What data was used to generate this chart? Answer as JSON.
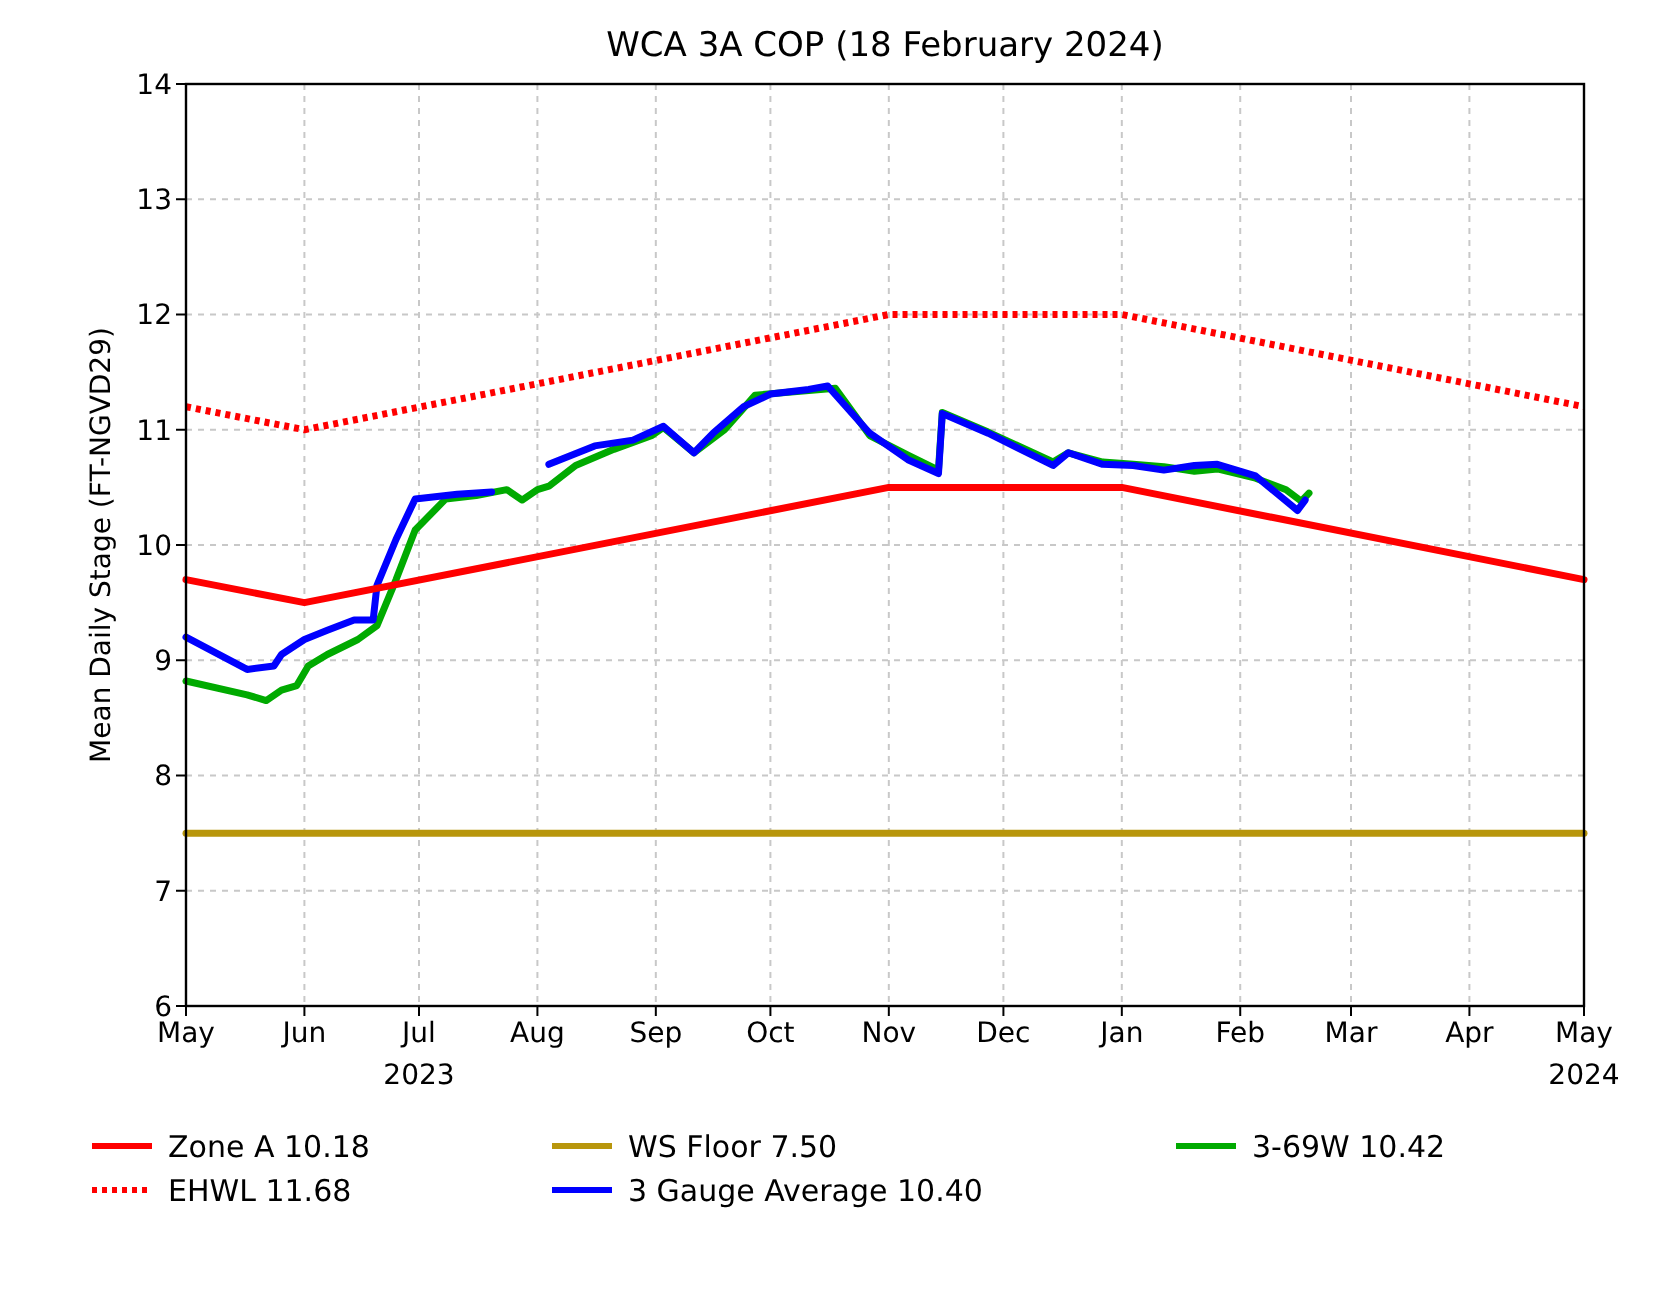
{
  "chart_data": {
    "type": "line",
    "title": "WCA 3A COP (18 February 2024)",
    "ylabel": "Mean Daily Stage (FT-NGVD29)",
    "xlim": [
      "2023-05-01",
      "2024-05-01"
    ],
    "xticks": [
      {
        "value": "2023-05-01",
        "label": "May"
      },
      {
        "value": "2023-06-01",
        "label": "Jun"
      },
      {
        "value": "2023-07-01",
        "label": "Jul\n2023"
      },
      {
        "value": "2023-08-01",
        "label": "Aug"
      },
      {
        "value": "2023-09-01",
        "label": "Sep"
      },
      {
        "value": "2023-10-01",
        "label": "Oct"
      },
      {
        "value": "2023-11-01",
        "label": "Nov"
      },
      {
        "value": "2023-12-01",
        "label": "Dec"
      },
      {
        "value": "2024-01-01",
        "label": "Jan"
      },
      {
        "value": "2024-02-01",
        "label": "Feb"
      },
      {
        "value": "2024-03-01",
        "label": "Mar"
      },
      {
        "value": "2024-04-01",
        "label": "Apr"
      },
      {
        "value": "2024-05-01",
        "label": "May\n2024"
      }
    ],
    "ylim": [
      6,
      14
    ],
    "yticks": [
      6,
      7,
      8,
      9,
      10,
      11,
      12,
      13,
      14
    ],
    "grid": true,
    "legend": "bottom",
    "marker": "none",
    "series": [
      {
        "name": "Zone A 10.18",
        "color": "#ff0000",
        "line_style": "solid",
        "x": [
          "2023-05-01",
          "2023-06-01",
          "2023-11-01",
          "2024-01-01",
          "2024-05-01"
        ],
        "values": [
          9.7,
          9.5,
          10.5,
          10.5,
          9.7
        ]
      },
      {
        "name": "EHWL 11.68",
        "color": "#ff0000",
        "line_style": "dotted",
        "x": [
          "2023-05-01",
          "2023-06-01",
          "2023-11-01",
          "2024-01-01",
          "2024-05-01"
        ],
        "values": [
          11.2,
          11.0,
          12.0,
          12.0,
          11.2
        ]
      },
      {
        "name": "WS Floor 7.50",
        "color": "#b8960c",
        "line_style": "solid",
        "x": [
          "2023-05-01",
          "2024-05-01"
        ],
        "values": [
          7.5,
          7.5
        ]
      },
      {
        "name": "3 Gauge Average 10.40",
        "color": "#0000ff",
        "line_style": "solid",
        "x": [
          "2023-05-01",
          "2023-05-17",
          "2023-05-24",
          "2023-05-26",
          "2023-06-01",
          "2023-06-07",
          "2023-06-14",
          "2023-06-19",
          "2023-06-20",
          "2023-06-25",
          "2023-06-30",
          "2023-07-11",
          "2023-07-20",
          "2023-07-27",
          "2023-08-04",
          "2023-08-16",
          "2023-08-26",
          "2023-09-03",
          "2023-09-11",
          "2023-09-16",
          "2023-09-24",
          "2023-10-01",
          "2023-10-11",
          "2023-10-16",
          "2023-10-27",
          "2023-11-06",
          "2023-11-14",
          "2023-11-15",
          "2023-11-27",
          "2023-12-14",
          "2023-12-18",
          "2023-12-27",
          "2024-01-04",
          "2024-01-12",
          "2024-01-20",
          "2024-01-26",
          "2024-02-05",
          "2024-02-16",
          "2024-02-18"
        ],
        "values": [
          9.2,
          8.92,
          8.95,
          9.05,
          9.18,
          9.26,
          9.35,
          9.35,
          9.65,
          10.05,
          10.4,
          10.44,
          10.46,
          null,
          10.7,
          10.86,
          10.91,
          11.03,
          10.8,
          10.97,
          11.2,
          11.31,
          11.35,
          11.38,
          10.97,
          10.74,
          10.62,
          11.14,
          10.97,
          10.69,
          10.8,
          10.7,
          10.69,
          10.65,
          10.69,
          10.7,
          10.6,
          10.3,
          10.39
        ]
      },
      {
        "name": "3-69W 10.42",
        "color": "#00aa00",
        "line_style": "solid",
        "x": [
          "2023-05-01",
          "2023-05-17",
          "2023-05-22",
          "2023-05-26",
          "2023-05-30",
          "2023-06-02",
          "2023-06-07",
          "2023-06-15",
          "2023-06-20",
          "2023-06-25",
          "2023-06-30",
          "2023-07-08",
          "2023-07-16",
          "2023-07-24",
          "2023-07-28",
          "2023-08-01",
          "2023-08-04",
          "2023-08-11",
          "2023-08-21",
          "2023-08-31",
          "2023-09-03",
          "2023-09-11",
          "2023-09-19",
          "2023-09-27",
          "2023-10-18",
          "2023-10-27",
          "2023-11-06",
          "2023-11-14",
          "2023-11-15",
          "2023-11-27",
          "2023-12-14",
          "2023-12-18",
          "2023-12-27",
          "2024-01-04",
          "2024-01-12",
          "2024-01-20",
          "2024-01-26",
          "2024-02-05",
          "2024-02-13",
          "2024-02-17",
          "2024-02-19"
        ],
        "values": [
          8.82,
          8.7,
          8.65,
          8.74,
          8.78,
          8.95,
          9.05,
          9.18,
          9.3,
          9.7,
          10.13,
          10.4,
          10.43,
          10.48,
          10.39,
          10.48,
          10.51,
          10.69,
          10.83,
          10.95,
          11.02,
          10.8,
          11.0,
          11.3,
          11.36,
          10.95,
          10.78,
          10.65,
          11.15,
          10.98,
          10.72,
          10.8,
          10.72,
          10.7,
          10.68,
          10.64,
          10.66,
          10.58,
          10.48,
          10.38,
          10.45
        ]
      }
    ]
  }
}
